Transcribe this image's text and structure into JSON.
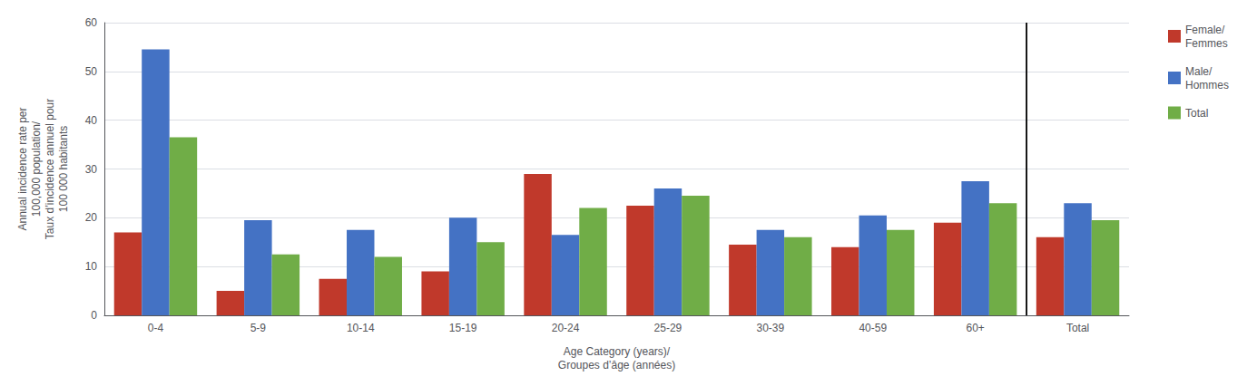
{
  "chart_data": {
    "type": "bar",
    "xlabel": "Age Category (years)/\nGroupes d’âge (années)",
    "ylabel": "Annual incidence rate per\n100,000 population/\nTaux d’incidence annuel pour\n100 000 habitants",
    "categories": [
      "0-4",
      "5-9",
      "10-14",
      "15-19",
      "20-24",
      "25-29",
      "30-39",
      "40-59",
      "60+",
      "Total"
    ],
    "series": [
      {
        "name": "Female/\nFemmes",
        "color": "#C0392B",
        "values": [
          17,
          5,
          7.5,
          9,
          29,
          22.5,
          14.5,
          14,
          19,
          16
        ]
      },
      {
        "name": "Male/\nHommes",
        "color": "#4472C4",
        "values": [
          54.5,
          19.5,
          17.5,
          20,
          16.5,
          26,
          17.5,
          20.5,
          27.5,
          23
        ]
      },
      {
        "name": "Total",
        "color": "#70AD47",
        "values": [
          36.5,
          12.5,
          12,
          15,
          22,
          24.5,
          16,
          17.5,
          23,
          19.5
        ]
      }
    ],
    "ylim": [
      0,
      60
    ],
    "yticks": [
      0,
      10,
      20,
      30,
      40,
      50,
      60
    ],
    "grid": true,
    "legend": "upper right"
  }
}
